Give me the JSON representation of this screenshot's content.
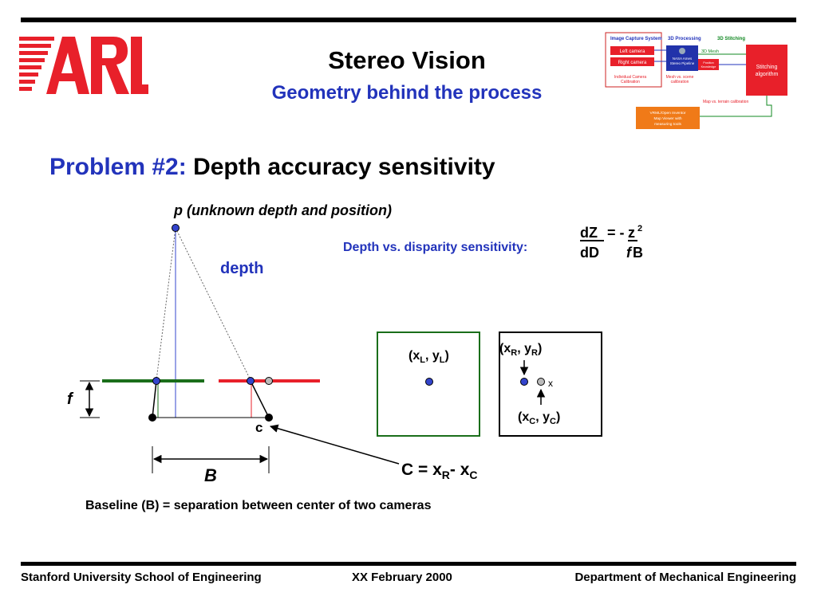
{
  "header": {
    "title": "Stereo Vision",
    "subtitle": "Geometry behind the process"
  },
  "logo": {
    "text": "ARL",
    "color": "#e8202a"
  },
  "pipeline": {
    "stage_image_capture": "Image Capture System",
    "stage_3d_processing": "3D Processing",
    "stage_3d_stitching": "3D Stitching",
    "left_camera": "Left camera",
    "right_camera": "Right camera",
    "nasa_lines": [
      "NASA Ames",
      "Stereo Pipeline"
    ],
    "three_d_mesh": "3D Mesh",
    "position_lines": [
      "Position",
      "Knowledge"
    ],
    "stitching_lines": [
      "Stitching",
      "algorithm"
    ],
    "camera_cal_lines": [
      "Individual Camera",
      "Calibration"
    ],
    "mesh_scene_lines": [
      "Mesh vs. scene",
      "calibration"
    ],
    "map_terrain": "Map vs. terrain calibration",
    "vrml_lines": [
      "VRML/Open Inventor",
      "Map Viewer with",
      "measuring tools"
    ]
  },
  "problem": {
    "label": "Problem #2:",
    "text": "Depth accuracy sensitivity"
  },
  "diagram": {
    "point_label": "p (unknown depth and position)",
    "depth_label": "depth",
    "sensitivity_label": "Depth vs. disparity sensitivity:",
    "formula_dZ": "dZ",
    "formula_dD": "dD",
    "formula_eq": "= -",
    "formula_z": "z",
    "formula_exp": "2",
    "formula_f": "f",
    "formula_B": "B",
    "f_label": "f",
    "c_label": "c",
    "B_label": "B",
    "left_coord": {
      "open": "(x",
      "sub1": "L",
      "mid": ", y",
      "sub2": "L",
      "close": ")"
    },
    "right_coord": {
      "open": "(x",
      "sub1": "R",
      "mid": ", y",
      "sub2": "R",
      "close": ")"
    },
    "center_coord": {
      "open": "(x",
      "sub1": "C",
      "mid": ", y",
      "sub2": "C",
      "close": ")"
    },
    "x_mark": "x",
    "disparity_eq": {
      "a": "C = x",
      "sub1": "R",
      "b": "- x",
      "sub2": "C"
    },
    "baseline_text": "Baseline (B) = separation between center of two cameras"
  },
  "footer": {
    "left": "Stanford University School of Engineering",
    "center": "XX February 2000",
    "right": "Department of Mechanical Engineering"
  }
}
